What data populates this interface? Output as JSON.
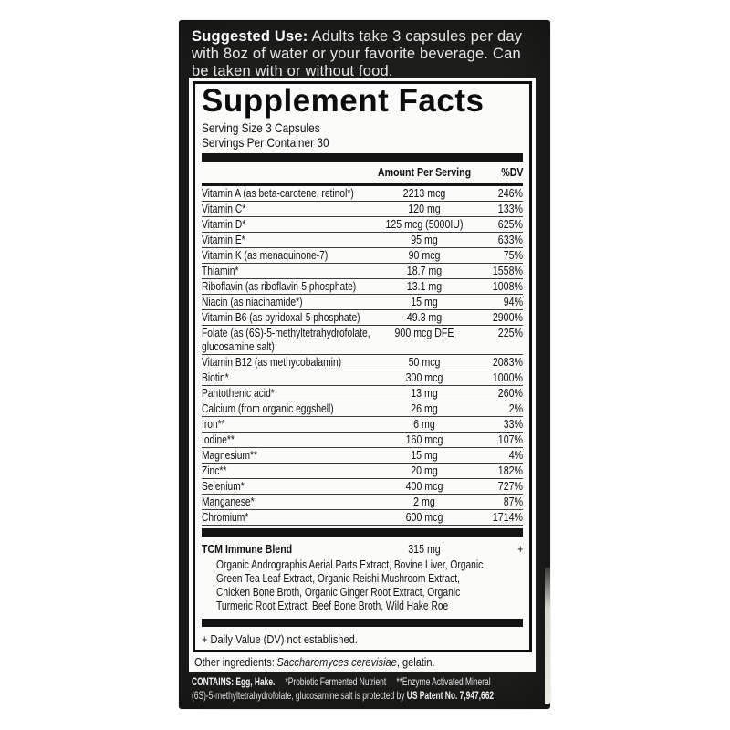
{
  "colors": {
    "package_bg": "#1e1e1c",
    "label_bg": "#fbfbfa",
    "text_dark": "#111111",
    "text_light": "#e8e8e8"
  },
  "package": {
    "suggested_use_label": "Suggested Use:",
    "suggested_use_text": "Adults take 3 capsules per day with 8oz of water or your favorite beverage. Can be taken with or without food."
  },
  "supplement_facts": {
    "title": "Supplement Facts",
    "serving_size": "Serving Size 3 Capsules",
    "servings_per_container": "Servings Per Container 30",
    "header": {
      "amount": "Amount Per Serving",
      "dv": "%DV"
    },
    "rows": [
      {
        "name": "Vitamin A (as beta-carotene, retinol*)",
        "amount": "2213 mcg",
        "dv": "246%"
      },
      {
        "name": "Vitamin C*",
        "amount": "120 mg",
        "dv": "133%"
      },
      {
        "name": "Vitamin D*",
        "amount": "125 mcg (5000IU)",
        "dv": "625%"
      },
      {
        "name": "Vitamin E*",
        "amount": "95 mg",
        "dv": "633%"
      },
      {
        "name": "Vitamin K (as menaquinone-7)",
        "amount": "90 mcg",
        "dv": "75%"
      },
      {
        "name": "Thiamin*",
        "amount": "18.7 mg",
        "dv": "1558%"
      },
      {
        "name": "Riboflavin (as riboflavin-5 phosphate)",
        "amount": "13.1 mg",
        "dv": "1008%"
      },
      {
        "name": "Niacin (as niacinamide*)",
        "amount": "15 mg",
        "dv": "94%"
      },
      {
        "name": "Vitamin B6 (as pyridoxal-5 phosphate)",
        "amount": "49.3 mg",
        "dv": "2900%"
      },
      {
        "name": "Folate (as (6S)-5-methyltetrahydrofolate,",
        "name2": "glucosamine salt)",
        "amount": "900 mcg DFE",
        "dv": "225%"
      },
      {
        "name": "Vitamin B12 (as methycobalamin)",
        "amount": "50 mcg",
        "dv": "2083%"
      },
      {
        "name": "Biotin*",
        "amount": "300 mcg",
        "dv": "1000%"
      },
      {
        "name": "Pantothenic acid*",
        "amount": "13 mg",
        "dv": "260%"
      },
      {
        "name": "Calcium (from organic eggshell)",
        "amount": "26 mg",
        "dv": "2%"
      },
      {
        "name": "Iron**",
        "amount": "6 mg",
        "dv": "33%"
      },
      {
        "name": "Iodine**",
        "amount": "160 mcg",
        "dv": "107%"
      },
      {
        "name": "Magnesium**",
        "amount": "15 mg",
        "dv": "4%"
      },
      {
        "name": "Zinc**",
        "amount": "20 mg",
        "dv": "182%"
      },
      {
        "name": "Selenium*",
        "amount": "400 mcg",
        "dv": "727%"
      },
      {
        "name": "Manganese*",
        "amount": "2 mg",
        "dv": "87%"
      },
      {
        "name": "Chromium*",
        "amount": "600 mcg",
        "dv": "1714%"
      }
    ],
    "blend": {
      "name": "TCM Immune Blend",
      "amount": "315 mg",
      "dv": "+",
      "description_lines": [
        "Organic Andrographis Aerial Parts Extract, Bovine Liver, Organic",
        "Green Tea Leaf Extract, Organic Reishi Mushroom Extract,",
        "Chicken Bone Broth, Organic Ginger Root Extract, Organic",
        "Turmeric Root Extract, Beef Bone Broth, Wild Hake Roe"
      ]
    },
    "footnote": "+ Daily Value (DV) not established.",
    "other_ingredients": {
      "label": "Other ingredients:",
      "italic": "Saccharomyces cerevisiae",
      "rest": ", gelatin."
    }
  },
  "bottom": {
    "contains": "CONTAINS: Egg, Hake.",
    "note_probiotic": "*Probiotic Fermented Nutrient",
    "note_enzyme": "**Enzyme Activated Mineral",
    "patent_prefix": "(6S)-5-methyltetrahydrofolate, glucosamine salt is protected by",
    "patent_bold": "US Patent No. 7,947,662"
  }
}
